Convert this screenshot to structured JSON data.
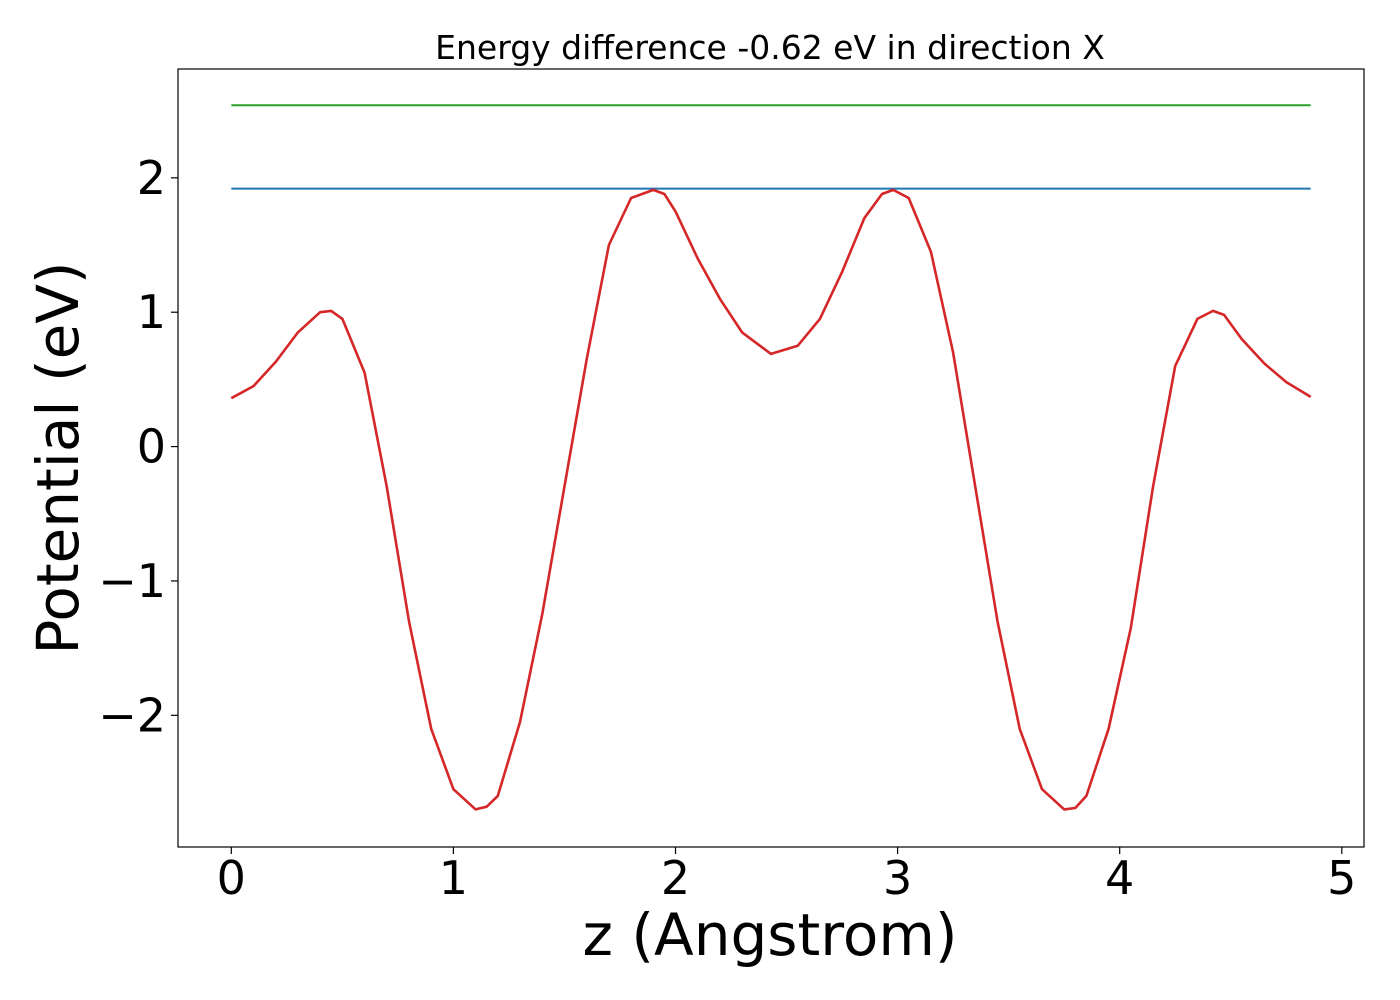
{
  "chart_data": {
    "type": "line",
    "title": "Energy difference -0.62 eV in direction X",
    "xlabel": "z (Angstrom)",
    "ylabel": "Potential (eV)",
    "xlim": [
      -0.24,
      5.1
    ],
    "ylim": [
      -2.98,
      2.81
    ],
    "grid": false,
    "legend": "none",
    "xticks": [
      0,
      1,
      2,
      3,
      4,
      5
    ],
    "xtick_labels": [
      "0",
      "1",
      "2",
      "3",
      "4",
      "5"
    ],
    "yticks": [
      -2,
      -1,
      0,
      1,
      2
    ],
    "ytick_labels": [
      "−2",
      "−1",
      "0",
      "1",
      "2"
    ],
    "series": [
      {
        "color": "#2ca02c",
        "x": [
          0,
          4.86
        ],
        "y": [
          2.54,
          2.54
        ]
      },
      {
        "color": "#1f77b4",
        "x": [
          0,
          4.86
        ],
        "y": [
          1.92,
          1.92
        ]
      },
      {
        "color": "#d62728",
        "x": [
          0,
          0.1,
          0.2,
          0.3,
          0.4,
          0.45,
          0.5,
          0.6,
          0.7,
          0.8,
          0.9,
          1.0,
          1.1,
          1.15,
          1.2,
          1.3,
          1.4,
          1.5,
          1.6,
          1.7,
          1.8,
          1.9,
          1.95,
          2.0,
          2.1,
          2.2,
          2.3,
          2.43,
          2.55,
          2.65,
          2.75,
          2.85,
          2.93,
          2.98,
          3.05,
          3.15,
          3.25,
          3.35,
          3.45,
          3.55,
          3.65,
          3.75,
          3.8,
          3.85,
          3.95,
          4.05,
          4.15,
          4.25,
          4.35,
          4.42,
          4.47,
          4.55,
          4.65,
          4.75,
          4.86
        ],
        "y": [
          0.36,
          0.45,
          0.63,
          0.85,
          1.0,
          1.01,
          0.95,
          0.55,
          -0.3,
          -1.3,
          -2.1,
          -2.55,
          -2.7,
          -2.68,
          -2.6,
          -2.05,
          -1.25,
          -0.3,
          0.65,
          1.5,
          1.85,
          1.91,
          1.88,
          1.75,
          1.4,
          1.1,
          0.85,
          0.69,
          0.75,
          0.95,
          1.3,
          1.7,
          1.88,
          1.91,
          1.85,
          1.45,
          0.7,
          -0.3,
          -1.3,
          -2.1,
          -2.55,
          -2.7,
          -2.69,
          -2.6,
          -2.1,
          -1.35,
          -0.3,
          0.6,
          0.95,
          1.01,
          0.98,
          0.8,
          0.62,
          0.48,
          0.37
        ]
      }
    ]
  }
}
